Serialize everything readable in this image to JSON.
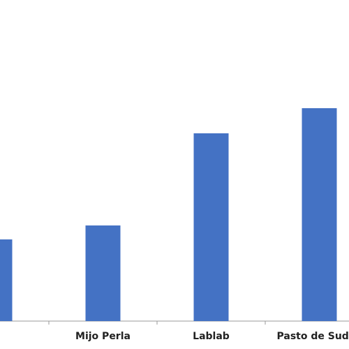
{
  "chart_data": {
    "type": "bar",
    "categories": [
      null,
      "Mijo Perla",
      "Lablab",
      "Pasto de Sud"
    ],
    "values": [
      117,
      137,
      269,
      305
    ],
    "color": "#4472c4"
  }
}
